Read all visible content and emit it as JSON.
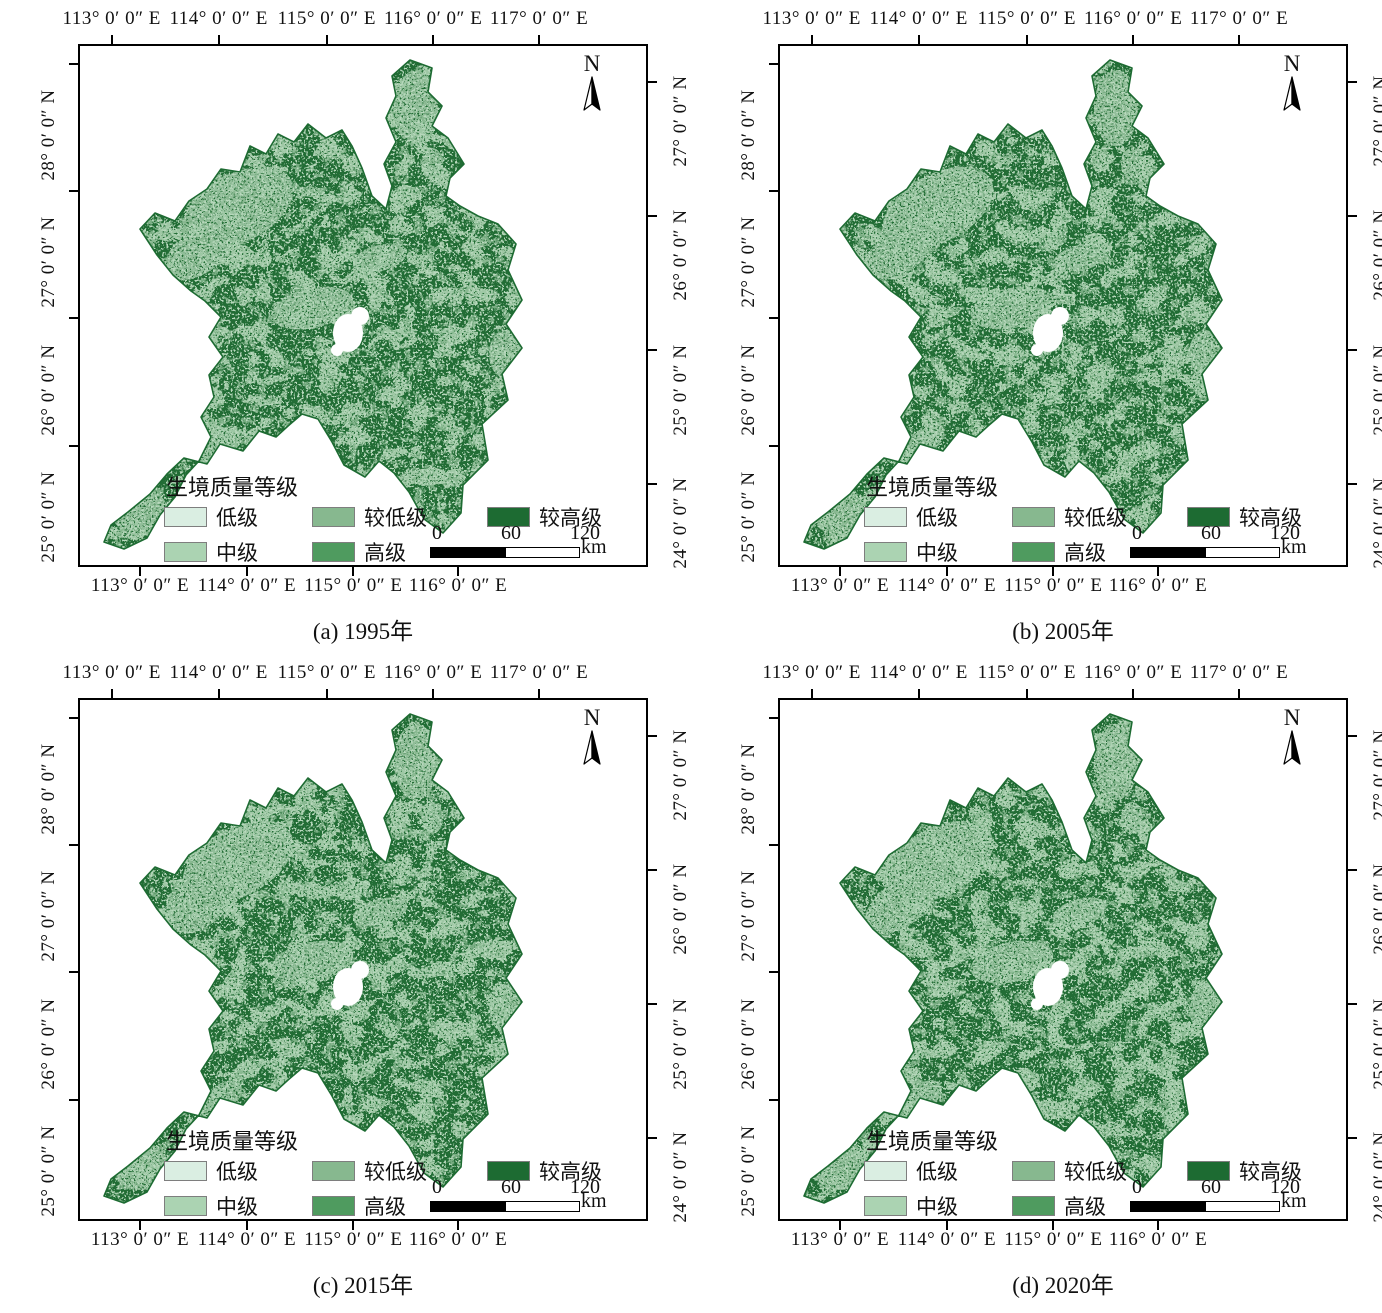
{
  "figure": {
    "north_label": "N",
    "axes": {
      "top": [
        "113° 0′ 0″ E",
        "114° 0′ 0″ E",
        "115° 0′ 0″ E",
        "116° 0′ 0″ E",
        "117° 0′ 0″ E"
      ],
      "bottom": [
        "113° 0′ 0″ E",
        "114° 0′ 0″ E",
        "115° 0′ 0″ E",
        "116° 0′ 0″ E"
      ],
      "left": [
        "28° 0′ 0″ N",
        "27° 0′ 0″ N",
        "26° 0′ 0″ N",
        "25° 0′ 0″ N"
      ],
      "right": [
        "27° 0′ 0″ N",
        "26° 0′ 0″ N",
        "25° 0′ 0″ N",
        "24° 0′ 0″ N"
      ]
    },
    "legend": {
      "title": "生境质量等级",
      "items": [
        {
          "label": "低级",
          "color": "#daeee2"
        },
        {
          "label": "中级",
          "color": "#abd3b2"
        },
        {
          "label": "较低级",
          "color": "#87b88f"
        },
        {
          "label": "高级",
          "color": "#4f9b5f"
        },
        {
          "label": "较高级",
          "color": "#1d6b32"
        }
      ]
    },
    "scalebar": {
      "ticks": [
        "0",
        "60",
        "120"
      ],
      "unit": "km"
    },
    "map_colors": {
      "dark": "#236d35",
      "light": "#9fc8a5",
      "medium": "#87b88f",
      "speckle_light": "#b7d8bc",
      "hole": "#ffffff",
      "outline": "#1d6b32"
    },
    "panels": [
      {
        "caption": "(a) 1995年"
      },
      {
        "caption": "(b) 2005年"
      },
      {
        "caption": "(c) 2015年"
      },
      {
        "caption": "(d) 2020年"
      }
    ]
  }
}
